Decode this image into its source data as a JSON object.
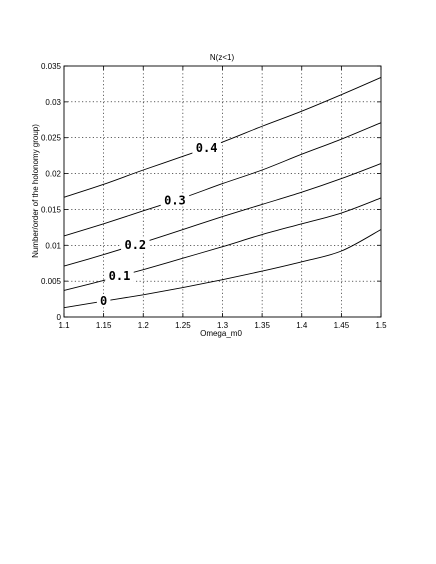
{
  "chart_data": {
    "type": "line",
    "title": "N(z<1)",
    "xlabel": "Omega_m0",
    "ylabel": "Number/order of the holonomy group)",
    "xlim": [
      1.1,
      1.5
    ],
    "ylim": [
      0,
      0.035
    ],
    "grid": true,
    "x_ticks": [
      "1.1",
      "1.15",
      "1.2",
      "1.25",
      "1.3",
      "1.35",
      "1.4",
      "1.45",
      "1.5"
    ],
    "y_ticks": [
      "0",
      "0.005",
      "0.01",
      "0.015",
      "0.02",
      "0.025",
      "0.03",
      "0.035"
    ],
    "x": [
      1.1,
      1.15,
      1.2,
      1.25,
      1.3,
      1.35,
      1.4,
      1.45,
      1.5
    ],
    "series": [
      {
        "name": "0",
        "values": [
          0.0013,
          0.0022,
          0.0031,
          0.0041,
          0.0052,
          0.0064,
          0.0077,
          0.0092,
          0.0122
        ],
        "label_x": 1.15
      },
      {
        "name": "0.1",
        "values": [
          0.0037,
          0.0051,
          0.0066,
          0.0082,
          0.0098,
          0.0115,
          0.013,
          0.0145,
          0.0166
        ],
        "label_x": 1.17
      },
      {
        "name": "0.2",
        "values": [
          0.0071,
          0.0087,
          0.0104,
          0.0122,
          0.014,
          0.0157,
          0.0174,
          0.0193,
          0.0214
        ],
        "label_x": 1.19
      },
      {
        "name": "0.3",
        "values": [
          0.0113,
          0.013,
          0.0148,
          0.0166,
          0.0186,
          0.0205,
          0.0227,
          0.0248,
          0.0271
        ],
        "label_x": 1.24
      },
      {
        "name": "0.4",
        "values": [
          0.0167,
          0.0185,
          0.0205,
          0.0224,
          0.0244,
          0.0266,
          0.0287,
          0.031,
          0.0334
        ],
        "label_x": 1.28
      }
    ]
  }
}
